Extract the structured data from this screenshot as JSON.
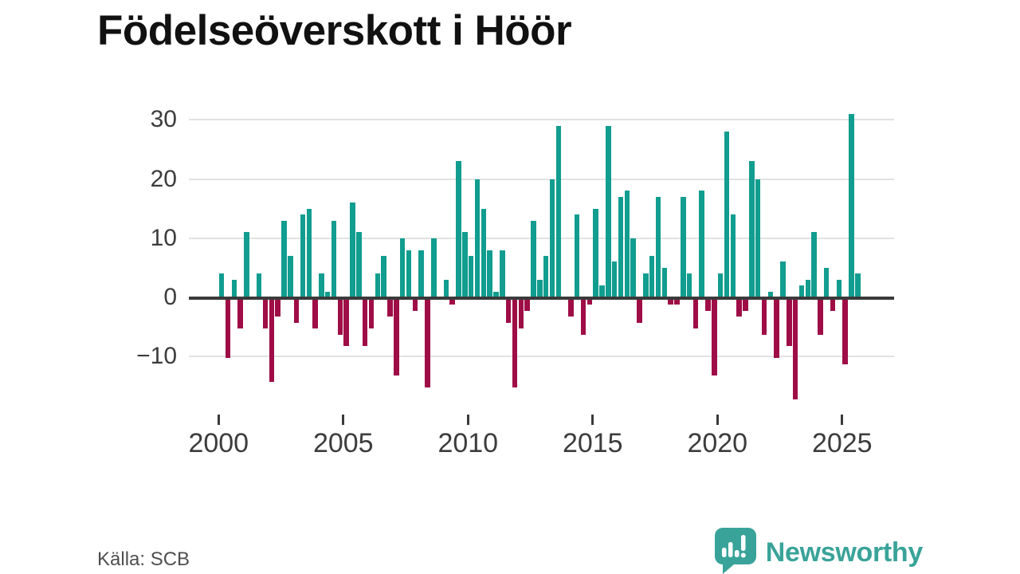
{
  "page": {
    "title": "Födelseöverskott i Höör",
    "source": "Källa: SCB",
    "brand": {
      "name": "Newsworthy",
      "color": "#39a399"
    }
  },
  "chart_data": {
    "type": "bar",
    "title": "Födelseöverskott i Höör",
    "frequency": "quarterly",
    "x_start": "2000-Q1",
    "x_end": "2025-Q3",
    "positive_color": "#119d8f",
    "negative_color": "#9f0d46",
    "grid": true,
    "legend": "none",
    "ylim": [
      -18,
      32
    ],
    "yticks": [
      {
        "value": 30,
        "label": "30"
      },
      {
        "value": 20,
        "label": "20"
      },
      {
        "value": 10,
        "label": "10"
      },
      {
        "value": 0,
        "label": "0"
      },
      {
        "value": -10,
        "label": "−10"
      }
    ],
    "xticks": [
      2000,
      2005,
      2010,
      2015,
      2020,
      2025
    ],
    "series": [
      {
        "year": 2000,
        "quarters": [
          4,
          -10,
          3,
          -5
        ]
      },
      {
        "year": 2001,
        "quarters": [
          11,
          0,
          4,
          -5
        ]
      },
      {
        "year": 2002,
        "quarters": [
          -14,
          -3,
          13,
          7
        ]
      },
      {
        "year": 2003,
        "quarters": [
          -4,
          14,
          15,
          -5
        ]
      },
      {
        "year": 2004,
        "quarters": [
          4,
          1,
          13,
          -6
        ]
      },
      {
        "year": 2005,
        "quarters": [
          -8,
          16,
          11,
          -8
        ]
      },
      {
        "year": 2006,
        "quarters": [
          -5,
          4,
          7,
          -3
        ]
      },
      {
        "year": 2007,
        "quarters": [
          -13,
          10,
          8,
          -2
        ]
      },
      {
        "year": 2008,
        "quarters": [
          8,
          -15,
          10,
          0
        ]
      },
      {
        "year": 2009,
        "quarters": [
          3,
          -1,
          23,
          11
        ]
      },
      {
        "year": 2010,
        "quarters": [
          7,
          20,
          15,
          8
        ]
      },
      {
        "year": 2011,
        "quarters": [
          1,
          8,
          -4,
          -15
        ]
      },
      {
        "year": 2012,
        "quarters": [
          -5,
          -2,
          13,
          3
        ]
      },
      {
        "year": 2013,
        "quarters": [
          7,
          20,
          29,
          0
        ]
      },
      {
        "year": 2014,
        "quarters": [
          -3,
          14,
          -6,
          -1
        ]
      },
      {
        "year": 2015,
        "quarters": [
          15,
          2,
          29,
          6
        ]
      },
      {
        "year": 2016,
        "quarters": [
          17,
          18,
          10,
          -4
        ]
      },
      {
        "year": 2017,
        "quarters": [
          4,
          7,
          17,
          5
        ]
      },
      {
        "year": 2018,
        "quarters": [
          -1,
          -1,
          17,
          4
        ]
      },
      {
        "year": 2019,
        "quarters": [
          -5,
          18,
          -2,
          -13
        ]
      },
      {
        "year": 2020,
        "quarters": [
          4,
          28,
          14,
          -3
        ]
      },
      {
        "year": 2021,
        "quarters": [
          -2,
          23,
          20,
          -6
        ]
      },
      {
        "year": 2022,
        "quarters": [
          1,
          -10,
          6,
          -8
        ]
      },
      {
        "year": 2023,
        "quarters": [
          -17,
          2,
          3,
          11
        ]
      },
      {
        "year": 2024,
        "quarters": [
          -6,
          5,
          -2,
          3
        ]
      },
      {
        "year": 2025,
        "quarters": [
          -11,
          31,
          4
        ]
      }
    ]
  }
}
